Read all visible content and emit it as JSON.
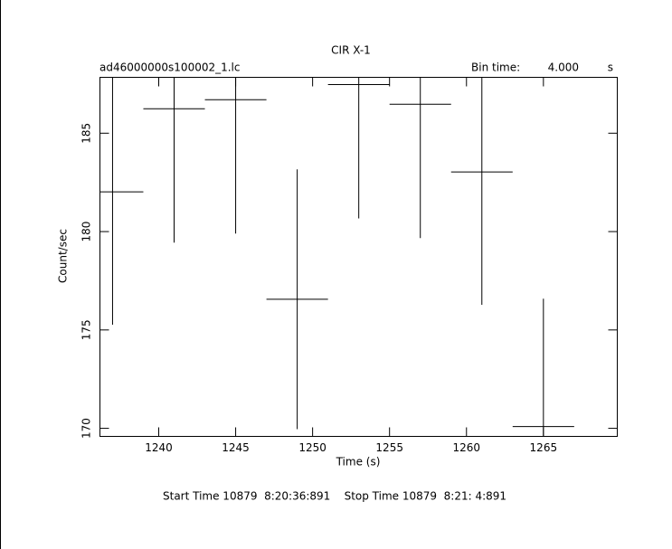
{
  "chart_data": {
    "type": "errorbar",
    "title": "CIR X-1",
    "file_label": "ad46000000s100002_1.lc",
    "bin_label": "Bin time:",
    "bin_value": "4.000",
    "bin_unit": "s",
    "xlabel": "Time (s)",
    "ylabel": "Count/sec",
    "footer": "Start Time 10879  8:20:36:891    Stop Time 10879  8:21: 4:891",
    "x": [
      1237,
      1241,
      1245,
      1249,
      1253,
      1257,
      1261,
      1265
    ],
    "xerr": [
      2,
      2,
      2,
      2,
      2,
      2,
      2,
      2
    ],
    "values": [
      182.02,
      186.24,
      186.7,
      176.56,
      187.47,
      186.47,
      183.03,
      170.09
    ],
    "yerr": [
      6.75,
      6.8,
      6.8,
      6.6,
      6.8,
      6.8,
      6.75,
      6.5
    ],
    "color": "#000000",
    "xlim": [
      1236.18,
      1269.8
    ],
    "xticks": [
      1240,
      1245,
      1250,
      1255,
      1260,
      1265
    ],
    "ylim": [
      169.59,
      187.84
    ],
    "yticks": [
      170,
      175,
      180,
      185
    ]
  }
}
